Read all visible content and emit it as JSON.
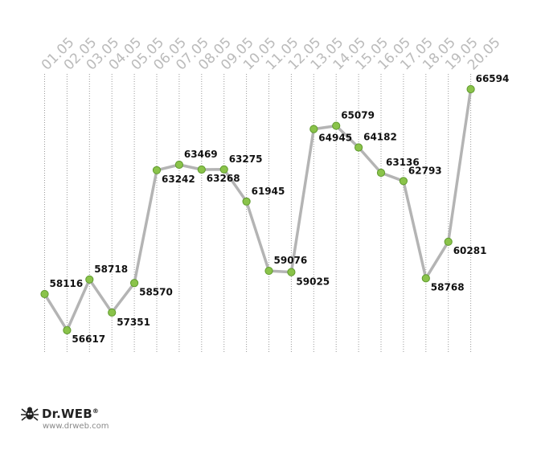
{
  "chart_data": {
    "type": "line",
    "title": "",
    "xlabel": "",
    "ylabel": "",
    "categories": [
      "01.05",
      "02.05",
      "03.05",
      "04.05",
      "05.05",
      "06.05",
      "07.05",
      "08.05",
      "09.05",
      "10.05",
      "11.05",
      "12.05",
      "13.05",
      "14.05",
      "15.05",
      "16.05",
      "17.05",
      "18.05",
      "19.05",
      "20.05"
    ],
    "values": [
      58116,
      56617,
      58718,
      57351,
      58570,
      63242,
      63469,
      63268,
      63275,
      61945,
      59076,
      59025,
      64945,
      65079,
      64182,
      63136,
      62793,
      58768,
      60281,
      66594
    ],
    "grid": "vertical dotted",
    "colors": {
      "line": "#b4b4b4",
      "marker": "#8ac34a",
      "marker_edge": "#5f9a2e",
      "tick": "#bbbbbb",
      "label": "#111111",
      "grid": "#999999"
    }
  },
  "brand": {
    "name": "Dr.WEB",
    "url": "www.drweb.com"
  }
}
